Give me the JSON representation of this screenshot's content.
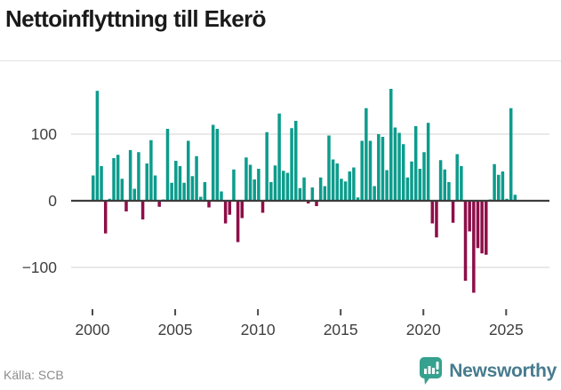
{
  "title": "Nettoinflyttning till Ekerö",
  "source": "Källa: SCB",
  "brand": {
    "name": "Newsworthy",
    "icon": "newsworthy-speech-bubble-bars-icon"
  },
  "colors": {
    "positive": "#0c9c8c",
    "negative": "#8e0e48",
    "zero_line": "#3c3c3c",
    "gridline": "#dcdcdc",
    "tick_label": "#3f3f3f",
    "tick_mark": "#4a4a4a",
    "title_text": "#1a1a1a",
    "source_text": "#8c8c8c",
    "brand_text": "#477b8e",
    "brand_icon": "#35a18e"
  },
  "chart_data": {
    "type": "bar",
    "title": "Nettoinflyttning till Ekerö",
    "xlabel": "",
    "ylabel": "",
    "frequency": "quarterly",
    "start": "2000Q1",
    "end": "2025Q3",
    "ylim": [
      -150,
      180
    ],
    "grid": true,
    "legend": "none",
    "yticks": [
      100,
      0,
      -100
    ],
    "ytick_labels": [
      "100",
      "0",
      "−100"
    ],
    "xticks": [
      2000,
      2005,
      2010,
      2015,
      2020,
      2025
    ],
    "xtick_labels": [
      "2000",
      "2005",
      "2010",
      "2015",
      "2020",
      "2025"
    ],
    "values": [
      38,
      165,
      52,
      -49,
      3,
      64,
      69,
      33,
      -16,
      76,
      18,
      73,
      -28,
      56,
      91,
      38,
      -9,
      2,
      108,
      27,
      60,
      52,
      27,
      90,
      37,
      67,
      6,
      28,
      -10,
      114,
      108,
      14,
      -34,
      -21,
      47,
      -62,
      -26,
      65,
      54,
      32,
      48,
      -18,
      103,
      28,
      53,
      131,
      45,
      42,
      109,
      120,
      19,
      35,
      -4,
      20,
      -8,
      35,
      22,
      98,
      62,
      56,
      33,
      29,
      44,
      50,
      5,
      90,
      139,
      90,
      22,
      100,
      96,
      46,
      168,
      110,
      102,
      85,
      35,
      59,
      112,
      48,
      73,
      117,
      -34,
      -55,
      61,
      47,
      28,
      -33,
      70,
      52,
      -120,
      -46,
      -138,
      -71,
      -79,
      -81,
      2,
      55,
      39,
      44,
      3,
      139,
      9
    ]
  }
}
